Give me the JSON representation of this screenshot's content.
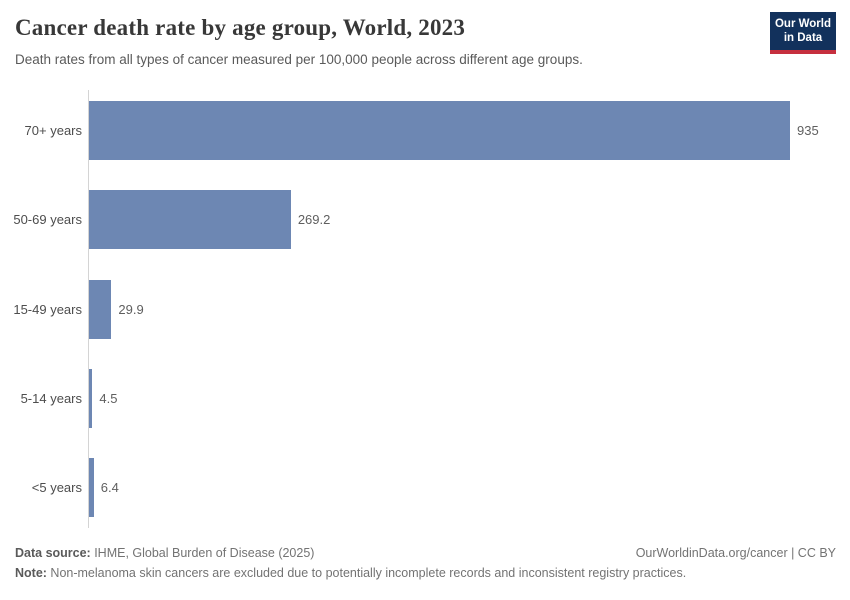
{
  "header": {
    "title": "Cancer death rate by age group, World, 2023",
    "subtitle": "Death rates from all types of cancer measured per 100,000 people across different age groups.",
    "logo": {
      "line1": "Our World",
      "line2": "in Data"
    }
  },
  "chart_data": {
    "type": "bar",
    "orientation": "horizontal",
    "title": "Cancer death rate by age group, World, 2023",
    "categories": [
      "70+ years",
      "50-69 years",
      "15-49 years",
      "5-14 years",
      "<5 years"
    ],
    "values": [
      935,
      269.2,
      29.9,
      4.5,
      6.4
    ],
    "value_labels": [
      "935",
      "269.2",
      "29.9",
      "4.5",
      "6.4"
    ],
    "xlabel": "",
    "ylabel": "",
    "xlim": [
      0,
      935
    ],
    "grid": false,
    "legend": "none",
    "bar_color": "#6d87b3",
    "axis_color": "#d4d4d4"
  },
  "footer": {
    "datasource_label": "Data source:",
    "datasource_text": " IHME, Global Burden of Disease (2025)",
    "note_label": "Note:",
    "note_text": " Non-melanoma skin cancers are excluded due to potentially incomplete records and inconsistent registry practices.",
    "link": "OurWorldinData.org/cancer | CC BY"
  }
}
